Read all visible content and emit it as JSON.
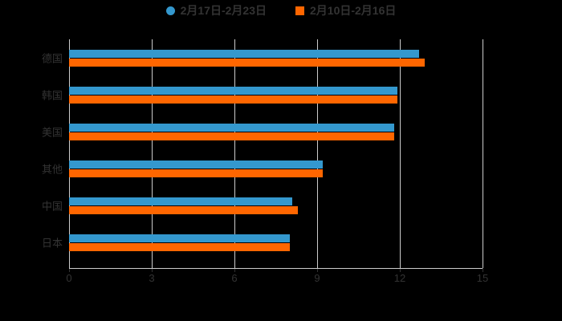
{
  "chart_data": {
    "type": "bar",
    "orientation": "horizontal",
    "title": "",
    "categories": [
      "德国",
      "韩国",
      "美国",
      "其他",
      "中国",
      "日本"
    ],
    "series": [
      {
        "name": "2月17日-2月23日",
        "color": "#3498ce",
        "marker": "circle",
        "values": [
          12.7,
          11.9,
          11.8,
          9.2,
          8.1,
          8.0
        ]
      },
      {
        "name": "2月10日-2月16日",
        "color": "#ff6600",
        "marker": "square",
        "values": [
          12.9,
          11.9,
          11.8,
          9.2,
          8.3,
          8.0
        ]
      }
    ],
    "xlabel": "",
    "ylabel": "",
    "xlim": [
      0,
      15
    ],
    "x_ticks": [
      "0",
      "3",
      "6",
      "9",
      "12",
      "15"
    ],
    "grid": true,
    "legend_position": "top-center",
    "colors": {
      "background": "#000000",
      "text": "#333333",
      "gridline": "#cccccc",
      "axis_line": "#cccccc",
      "tick": "#333333"
    }
  }
}
